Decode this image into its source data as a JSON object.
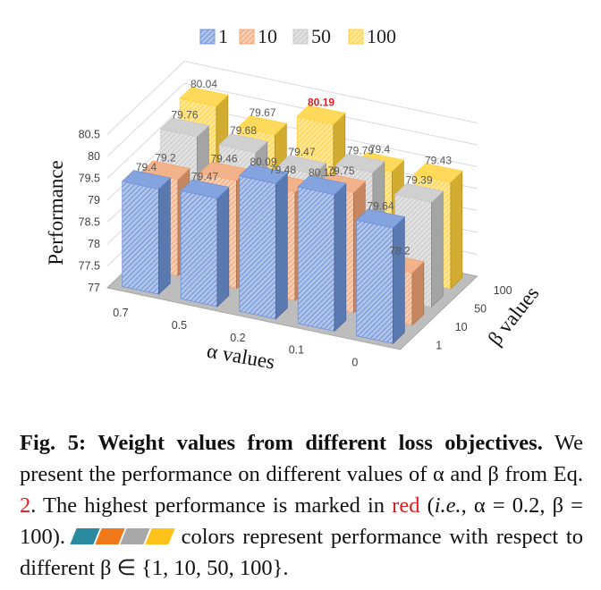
{
  "chart_data": {
    "type": "bar",
    "title": "",
    "ylabel": "Performance",
    "xlabel": "α values",
    "zlabel": "β values",
    "ylim": [
      77,
      80.5
    ],
    "yticks": [
      "77",
      "77.5",
      "78",
      "78.5",
      "79",
      "79.5",
      "80",
      "80.5"
    ],
    "categories": [
      "0.7",
      "0.5",
      "0.2",
      "0.1",
      "0"
    ],
    "depth_categories": [
      "1",
      "10",
      "50",
      "100"
    ],
    "legend_position": "top",
    "series": [
      {
        "name": "1",
        "color": "#6f93d8",
        "values": [
          79.4,
          79.47,
          80.09,
          80.12,
          79.64
        ],
        "labels": [
          "79.4",
          "79.47",
          "80.09",
          "80.12",
          "79.64"
        ]
      },
      {
        "name": "10",
        "color": "#f1a575",
        "values": [
          79.2,
          79.46,
          79.48,
          79.75,
          78.2
        ],
        "labels": [
          "79.2",
          "79.46",
          "79.48",
          "79.75",
          "78.2"
        ]
      },
      {
        "name": "50",
        "color": "#c8c8c8",
        "values": [
          79.76,
          79.68,
          79.47,
          79.79,
          79.39
        ],
        "labels": [
          "79.76",
          "79.68",
          "79.47",
          "79.79",
          "79.39"
        ]
      },
      {
        "name": "100",
        "color": "#ffd23c",
        "values": [
          80.04,
          79.67,
          80.19,
          79.4,
          79.43
        ],
        "labels": [
          "80.04",
          "79.67",
          "80.19",
          "79.4",
          "79.43"
        ]
      }
    ],
    "highlight": {
      "series": "100",
      "category": "0.2",
      "value": 80.19,
      "color": "#e01e1e"
    }
  },
  "caption": {
    "fig_label": "Fig. 5: Weight values from different loss objectives.",
    "text1": " We present the performance on different values of α and β from Eq. ",
    "eq_ref": "2",
    "text2": ". The highest performance is marked in ",
    "red_word": "red",
    "text3": " (",
    "ie": "i.e.",
    "text4": ", α = 0.2, β = 100). ",
    "text5": " colors represent performance with respect to different β ∈ {1, 10, 50, 100}.",
    "swatch_colors": [
      "#2a8aa0",
      "#f07a1a",
      "#a8a8a8",
      "#ffc21a"
    ]
  }
}
